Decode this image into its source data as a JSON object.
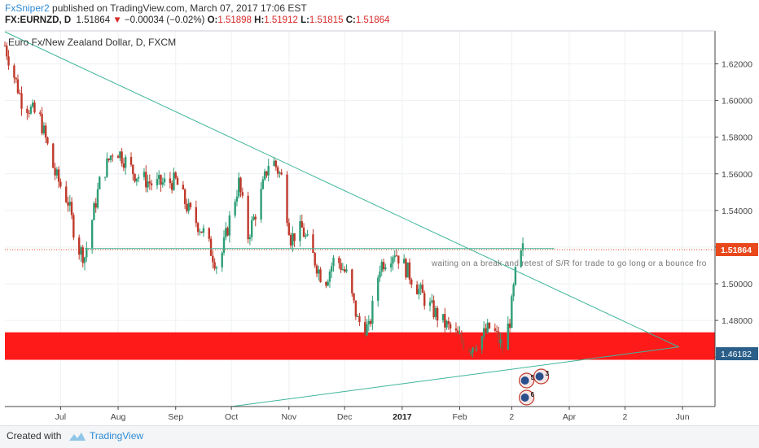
{
  "header": {
    "author": "FxSniper2",
    "published": "published on TradingView.com, March 07, 2017 17:06 EST",
    "symbol": "FX:EURNZD, D",
    "last": "1.51864",
    "change": "−0.00034 (−0.02%)",
    "open_label": "O:",
    "open": "1.51898",
    "high_label": "H:",
    "high": "1.51912",
    "low_label": "L:",
    "low": "1.51815",
    "close_label": "C:",
    "close": "1.51864"
  },
  "footer": {
    "created_with": "Created with",
    "brand": "TradingView"
  },
  "colors": {
    "up": "#2e9e76",
    "down": "#c0392b",
    "zone": "#ff1a1a",
    "trendline": "#3fb59a",
    "price_tag": "#e8481c",
    "support_tag": "#2b5f8a"
  },
  "chart_data": {
    "type": "candlestick",
    "title": "Euro Fx/New Zealand Dollar, D, FXCM",
    "xlabels": [
      "Jul",
      "Aug",
      "Sep",
      "Oct",
      "Nov",
      "Dec",
      "2017",
      "Feb",
      "2",
      "Apr",
      "2",
      "Jun"
    ],
    "y_ticks": [
      "1.62000",
      "1.60000",
      "1.58000",
      "1.56000",
      "1.54000",
      "1.52000",
      "1.50000",
      "1.48000",
      "1.46000"
    ],
    "ylim": [
      1.433,
      1.638
    ],
    "current_price": "1.51864",
    "support_level_label": "1.46182",
    "annotation": "waiting on a break and retest of S/R for trade to go long or a bounce fro",
    "horizontal_level": 1.5192,
    "support_zone": [
      1.4585,
      1.4735
    ],
    "event_markers": [
      "5",
      "3",
      "6"
    ],
    "close_path": [
      {
        "d": "2016-06-01",
        "c": 1.63
      },
      {
        "d": "2016-06-10",
        "c": 1.6
      },
      {
        "d": "2016-06-20",
        "c": 1.59
      },
      {
        "d": "2016-06-28",
        "c": 1.56
      },
      {
        "d": "2016-07-05",
        "c": 1.545
      },
      {
        "d": "2016-07-10",
        "c": 1.52
      },
      {
        "d": "2016-07-14",
        "c": 1.515
      },
      {
        "d": "2016-07-22",
        "c": 1.555
      },
      {
        "d": "2016-07-30",
        "c": 1.575
      },
      {
        "d": "2016-08-10",
        "c": 1.56
      },
      {
        "d": "2016-08-20",
        "c": 1.554
      },
      {
        "d": "2016-09-01",
        "c": 1.556
      },
      {
        "d": "2016-09-08",
        "c": 1.54
      },
      {
        "d": "2016-09-16",
        "c": 1.528
      },
      {
        "d": "2016-09-24",
        "c": 1.508
      },
      {
        "d": "2016-09-30",
        "c": 1.535
      },
      {
        "d": "2016-10-05",
        "c": 1.555
      },
      {
        "d": "2016-10-10",
        "c": 1.526
      },
      {
        "d": "2016-10-16",
        "c": 1.545
      },
      {
        "d": "2016-10-22",
        "c": 1.57
      },
      {
        "d": "2016-10-28",
        "c": 1.558
      },
      {
        "d": "2016-11-02",
        "c": 1.525
      },
      {
        "d": "2016-11-08",
        "c": 1.53
      },
      {
        "d": "2016-11-14",
        "c": 1.515
      },
      {
        "d": "2016-11-20",
        "c": 1.5
      },
      {
        "d": "2016-11-26",
        "c": 1.515
      },
      {
        "d": "2016-12-02",
        "c": 1.505
      },
      {
        "d": "2016-12-08",
        "c": 1.48
      },
      {
        "d": "2016-12-14",
        "c": 1.475
      },
      {
        "d": "2016-12-20",
        "c": 1.51
      },
      {
        "d": "2016-12-28",
        "c": 1.518
      },
      {
        "d": "2017-01-05",
        "c": 1.505
      },
      {
        "d": "2017-01-14",
        "c": 1.49
      },
      {
        "d": "2017-01-22",
        "c": 1.48
      },
      {
        "d": "2017-01-30",
        "c": 1.472
      },
      {
        "d": "2017-02-06",
        "c": 1.465
      },
      {
        "d": "2017-02-12",
        "c": 1.47
      },
      {
        "d": "2017-02-18",
        "c": 1.477
      },
      {
        "d": "2017-02-24",
        "c": 1.465
      },
      {
        "d": "2017-02-28",
        "c": 1.48
      },
      {
        "d": "2017-03-03",
        "c": 1.505
      },
      {
        "d": "2017-03-07",
        "c": 1.5186
      }
    ]
  }
}
